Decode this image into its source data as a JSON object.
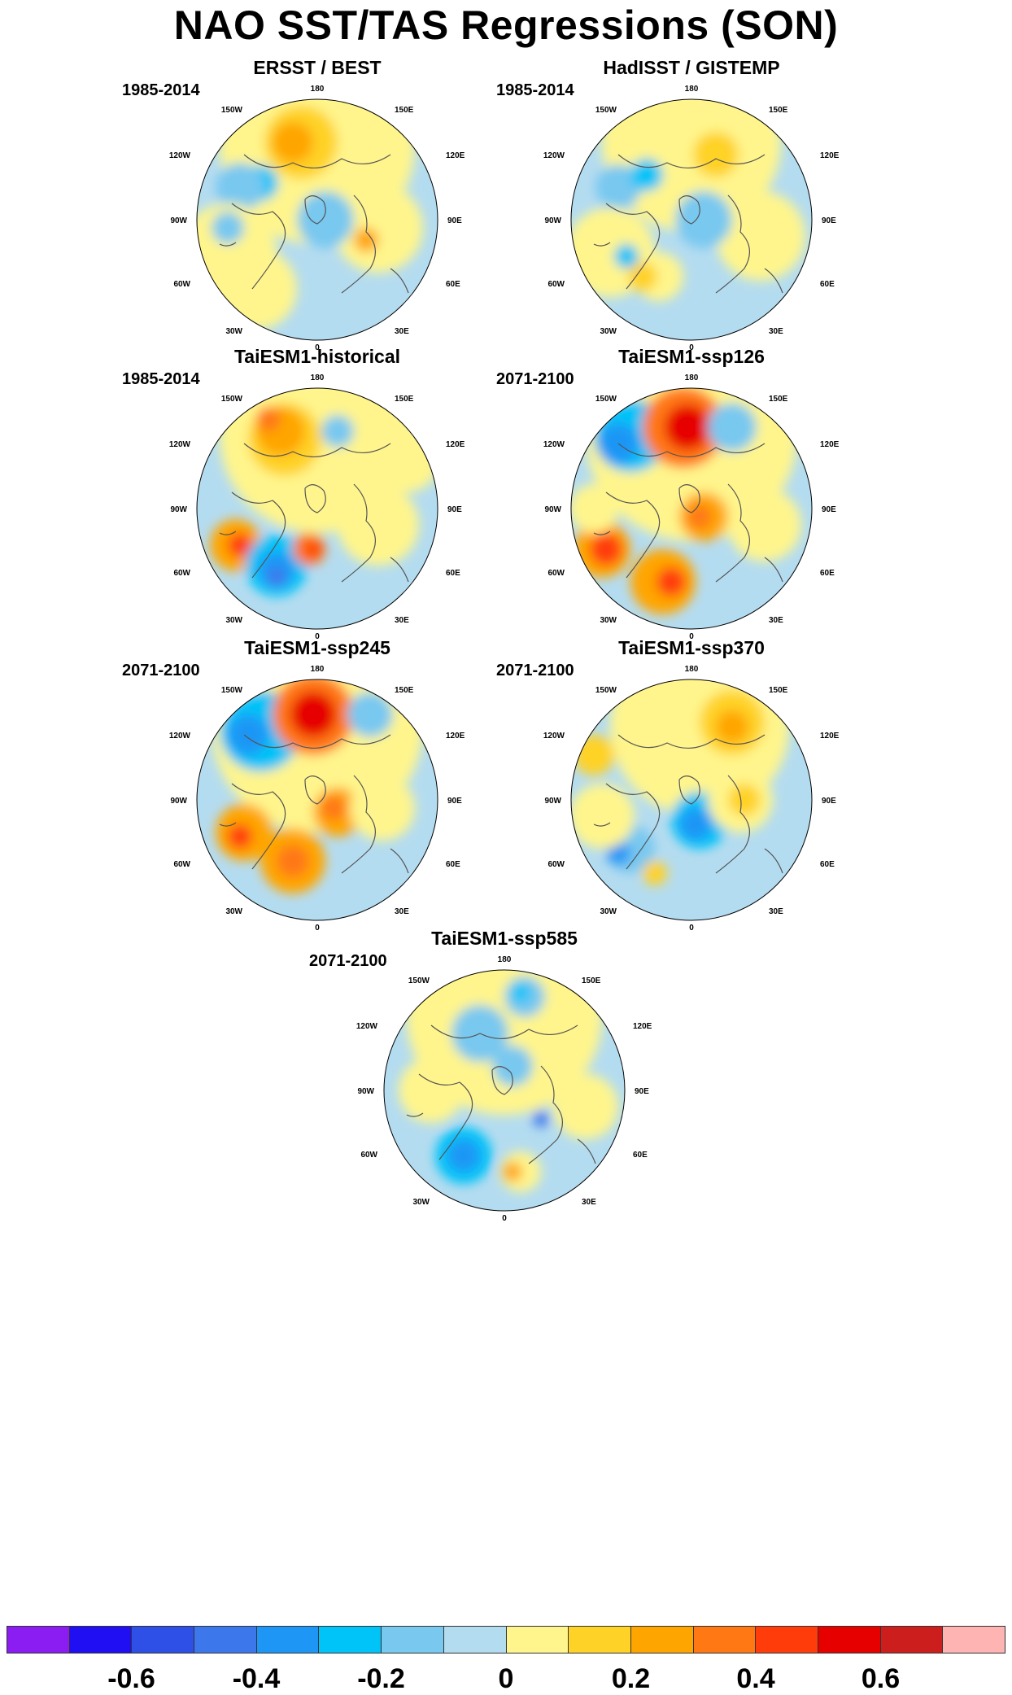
{
  "title": "NAO SST/TAS Regressions (SON)",
  "lon_labels": {
    "n180": "180",
    "w150": "150W",
    "e150": "150E",
    "w120": "120W",
    "e120": "120E",
    "w90": "90W",
    "e90": "90E",
    "w60": "60W",
    "e60": "60E",
    "w30": "30W",
    "e30": "30E",
    "zero": "0"
  },
  "panels": [
    {
      "title": "ERSST / BEST",
      "period": "1985-2014"
    },
    {
      "title": "HadISST / GISTEMP",
      "period": "1985-2014"
    },
    {
      "title": "TaiESM1-historical",
      "period": "1985-2014"
    },
    {
      "title": "TaiESM1-ssp126",
      "period": "2071-2100"
    },
    {
      "title": "TaiESM1-ssp245",
      "period": "2071-2100"
    },
    {
      "title": "TaiESM1-ssp370",
      "period": "2071-2100"
    },
    {
      "title": "TaiESM1-ssp585",
      "period": "2071-2100"
    }
  ],
  "colorbar": {
    "colors": [
      "#8B1CF2",
      "#1F0FF2",
      "#2E50E6",
      "#3C78EB",
      "#1E96F5",
      "#00C3F8",
      "#78C8F0",
      "#B4DCF0",
      "#FFF58C",
      "#FFD228",
      "#FFA500",
      "#FF7814",
      "#FF3C0A",
      "#E60000",
      "#CD1E1E",
      "#FFB4B4"
    ],
    "labels": [
      "-0.6",
      "-0.4",
      "-0.2",
      "0",
      "0.2",
      "0.4",
      "0.6"
    ]
  }
}
